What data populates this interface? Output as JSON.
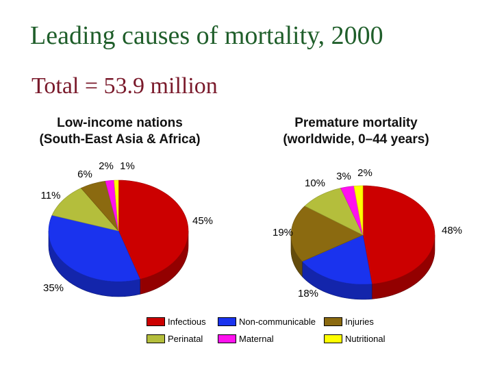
{
  "title": "Leading causes of mortality, 2000",
  "subtitle": "Total = 53.9 million",
  "chart_data": [
    {
      "type": "pie",
      "title_lines": [
        "Low-income nations",
        "(South-East Asia & Africa)"
      ],
      "categories": [
        "Infectious",
        "Non-communicable",
        "Perinatal",
        "Injuries",
        "Maternal",
        "Nutritional"
      ],
      "values": [
        45,
        35,
        11,
        6,
        2,
        1
      ],
      "labels": [
        "45%",
        "35%",
        "11%",
        "6%",
        "2%",
        "1%"
      ]
    },
    {
      "type": "pie",
      "title_lines": [
        "Premature mortality",
        "(worldwide, 0–44 years)"
      ],
      "categories": [
        "Infectious",
        "Non-communicable",
        "Injuries",
        "Perinatal",
        "Maternal",
        "Nutritional"
      ],
      "values": [
        48,
        18,
        19,
        10,
        3,
        2
      ],
      "labels": [
        "48%",
        "18%",
        "19%",
        "10%",
        "3%",
        "2%"
      ]
    }
  ],
  "legend": [
    {
      "label": "Infectious",
      "color": "#cc0000"
    },
    {
      "label": "Non-communicable",
      "color": "#1a33ee"
    },
    {
      "label": "Injuries",
      "color": "#8b6a10"
    },
    {
      "label": "Perinatal",
      "color": "#b4be3c"
    },
    {
      "label": "Maternal",
      "color": "#ff11ee"
    },
    {
      "label": "Nutritional",
      "color": "#ffff00"
    }
  ]
}
